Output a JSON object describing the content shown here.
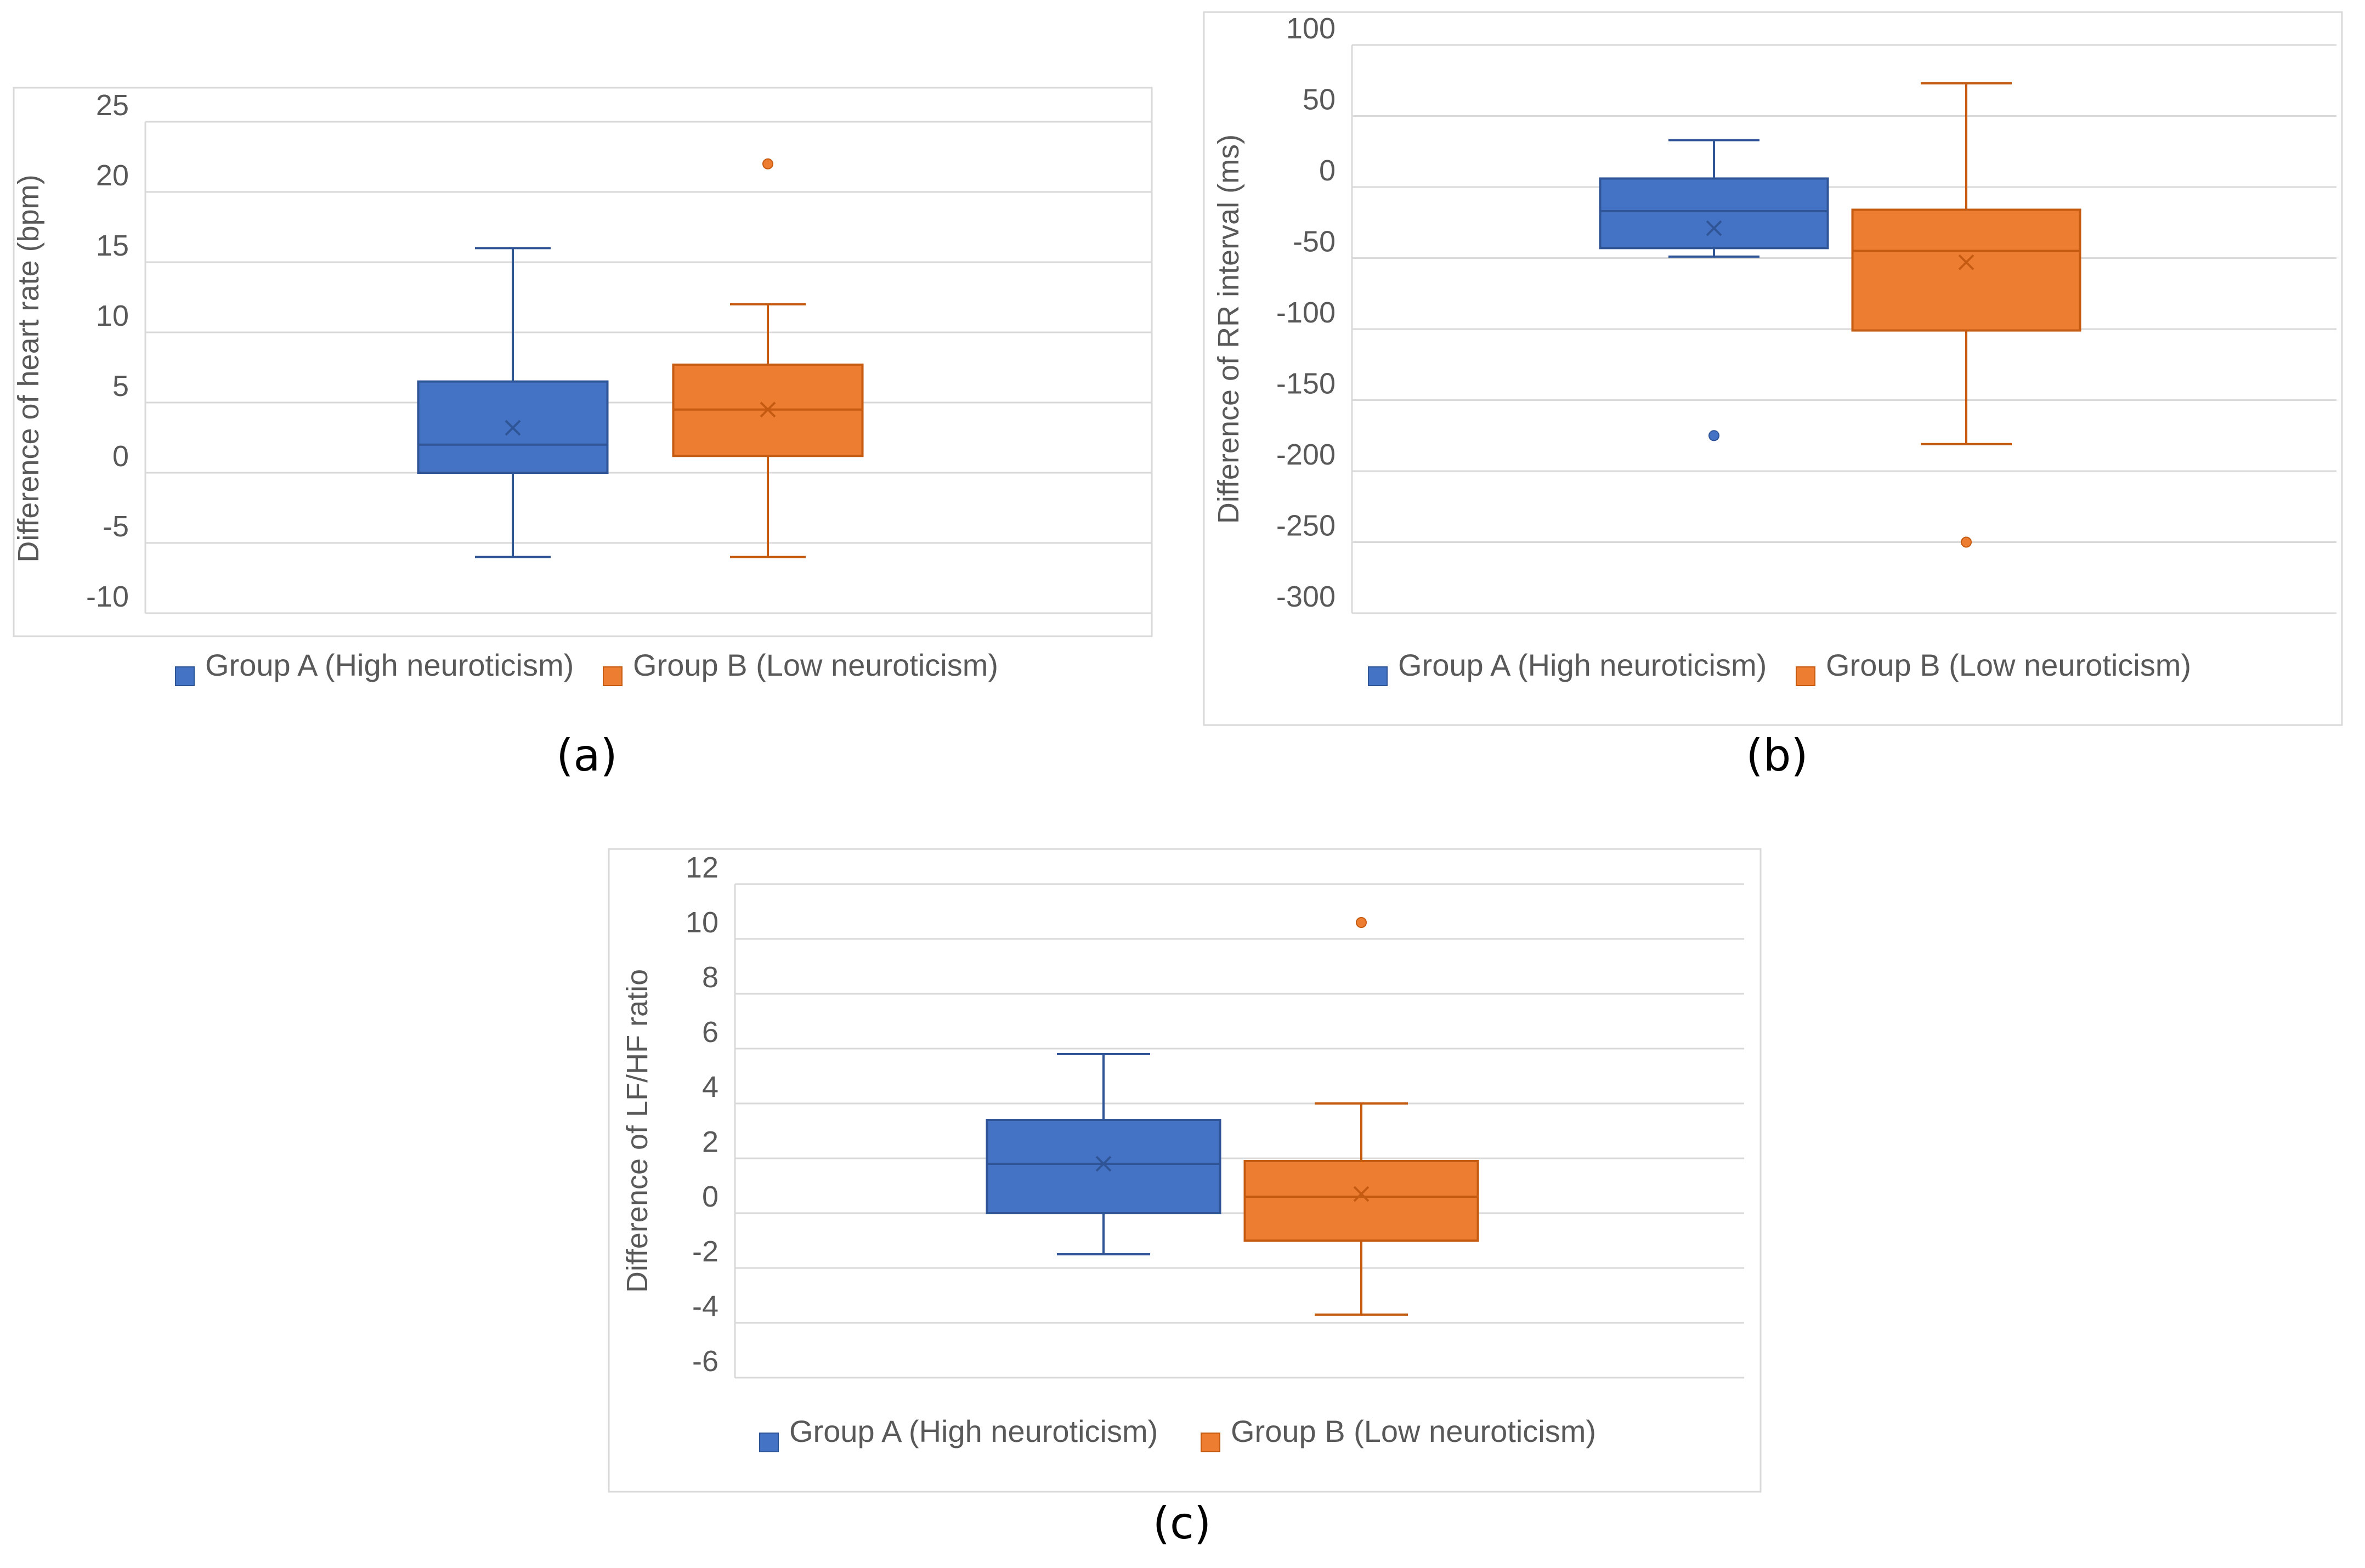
{
  "colors": {
    "group_a_fill": "#4472C4",
    "group_a_line": "#2F5597",
    "group_b_fill": "#ED7D31",
    "group_b_line": "#C55A11",
    "grid": "#D9D9D9",
    "frame": "#D9D9D9",
    "text": "#595959"
  },
  "chart_data": [
    {
      "type": "box",
      "caption": "(a)",
      "ylabel": "Difference of heart rate (bpm)",
      "ylim": [
        -10,
        25
      ],
      "yticks": [
        -10,
        -5,
        0,
        5,
        10,
        15,
        20,
        25
      ],
      "ytick_labels": [
        "-10",
        "-5",
        "0",
        "5",
        "10",
        "15",
        "20",
        "25"
      ],
      "series": [
        {
          "name": "Group A (High neuroticism)",
          "whisker_low": -6,
          "q1": 0,
          "median": 2,
          "q3": 6.5,
          "whisker_high": 16,
          "mean": 3.2,
          "outliers": []
        },
        {
          "name": "Group B (Low neuroticism)",
          "whisker_low": -6,
          "q1": 1.2,
          "median": 4.5,
          "q3": 7.7,
          "whisker_high": 12,
          "mean": 4.5,
          "outliers": [
            22
          ]
        }
      ]
    },
    {
      "type": "box",
      "caption": "(b)",
      "ylabel": "Difference of RR interval (ms)",
      "ylim": [
        -300,
        100
      ],
      "yticks": [
        -300,
        -250,
        -200,
        -150,
        -100,
        -50,
        0,
        50,
        100
      ],
      "ytick_labels": [
        "-300",
        "-250",
        "-200",
        "-150",
        "-100",
        "-50",
        "0",
        "50",
        "100"
      ],
      "series": [
        {
          "name": "Group A (High neuroticism)",
          "whisker_low": -49,
          "q1": -43,
          "median": -17,
          "q3": 6,
          "whisker_high": 33,
          "mean": -29,
          "outliers": [
            -175
          ]
        },
        {
          "name": "Group B (Low neuroticism)",
          "whisker_low": -181,
          "q1": -101,
          "median": -45,
          "q3": -16,
          "whisker_high": 73,
          "mean": -53,
          "outliers": [
            -250
          ]
        }
      ]
    },
    {
      "type": "box",
      "caption": "(c)",
      "ylabel": "Difference of LF/HF ratio",
      "ylim": [
        -6,
        12
      ],
      "yticks": [
        -6,
        -4,
        -2,
        0,
        2,
        4,
        6,
        8,
        10,
        12
      ],
      "ytick_labels": [
        "-6",
        "-4",
        "-2",
        "0",
        "2",
        "4",
        "6",
        "8",
        "10",
        "12"
      ],
      "series": [
        {
          "name": "Group A (High neuroticism)",
          "whisker_low": -1.5,
          "q1": 0,
          "median": 1.8,
          "q3": 3.4,
          "whisker_high": 5.8,
          "mean": 1.8,
          "outliers": []
        },
        {
          "name": "Group B (Low neuroticism)",
          "whisker_low": -3.7,
          "q1": -1,
          "median": 0.6,
          "q3": 1.9,
          "whisker_high": 4,
          "mean": 0.7,
          "outliers": [
            10.6
          ]
        }
      ]
    }
  ]
}
